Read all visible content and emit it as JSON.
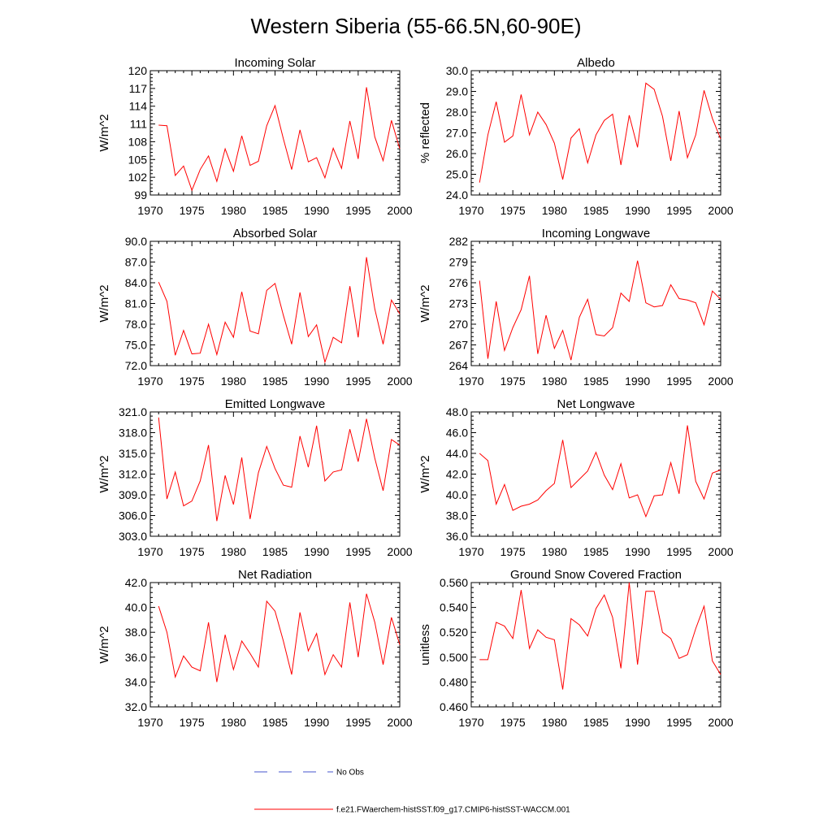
{
  "title": "Western Siberia (55-66.5N,60-90E)",
  "legend": {
    "obs_label": "No Obs",
    "obs_color": "#4455cc",
    "model_label": "f.e21.FWaerchem-histSST.f09_g17.CMIP6-histSST-WACCM.001",
    "model_color": "#ff0000"
  },
  "chart_data": [
    {
      "type": "line",
      "title": "Incoming Solar",
      "ylabel": "W/m^2",
      "xlim": [
        1970,
        2000
      ],
      "ylim": [
        99,
        120
      ],
      "yticks": [
        "99",
        "102",
        "105",
        "108",
        "111",
        "114",
        "117",
        "120"
      ],
      "xticks": [
        "1970",
        "1975",
        "1980",
        "1985",
        "1990",
        "1995",
        "2000"
      ],
      "x_start": 1971,
      "values": [
        110.8,
        110.7,
        102.3,
        103.9,
        99.8,
        103.3,
        105.6,
        101.3,
        106.8,
        103.0,
        109.0,
        104.0,
        104.7,
        110.7,
        114.1,
        108.5,
        103.3,
        110.0,
        104.6,
        105.3,
        101.9,
        106.9,
        103.5,
        111.5,
        105.1,
        117.2,
        108.8,
        104.8,
        111.6,
        106.8
      ]
    },
    {
      "type": "line",
      "title": "Albedo",
      "ylabel": "% reflected",
      "xlim": [
        1970,
        2000
      ],
      "ylim": [
        24.0,
        30.0
      ],
      "yticks": [
        "24.0",
        "25.0",
        "26.0",
        "27.0",
        "28.0",
        "29.0",
        "30.0"
      ],
      "xticks": [
        "1970",
        "1975",
        "1980",
        "1985",
        "1990",
        "1995",
        "2000"
      ],
      "x_start": 1971,
      "values": [
        24.6,
        26.9,
        28.5,
        26.55,
        26.85,
        28.85,
        26.9,
        28.0,
        27.4,
        26.5,
        24.75,
        26.75,
        27.2,
        25.55,
        26.9,
        27.6,
        27.9,
        25.45,
        27.85,
        26.3,
        29.4,
        29.1,
        27.8,
        25.65,
        28.05,
        25.8,
        26.9,
        29.05,
        27.7,
        26.7
      ]
    },
    {
      "type": "line",
      "title": "Absorbed Solar",
      "ylabel": "W/m^2",
      "xlim": [
        1970,
        2000
      ],
      "ylim": [
        72.0,
        90.0
      ],
      "yticks": [
        "72.0",
        "75.0",
        "78.0",
        "81.0",
        "84.0",
        "87.0",
        "90.0"
      ],
      "xticks": [
        "1970",
        "1975",
        "1980",
        "1985",
        "1990",
        "1995",
        "2000"
      ],
      "x_start": 1971,
      "values": [
        84.1,
        81.3,
        73.5,
        77.1,
        73.7,
        73.8,
        78.0,
        73.6,
        78.3,
        76.1,
        82.7,
        77.0,
        76.6,
        82.9,
        83.9,
        79.3,
        75.1,
        82.6,
        76.2,
        77.9,
        72.5,
        76.1,
        75.3,
        83.5,
        76.1,
        87.7,
        80.2,
        75.1,
        81.5,
        79.5
      ]
    },
    {
      "type": "line",
      "title": "Incoming Longwave",
      "ylabel": "W/m^2",
      "xlim": [
        1970,
        2000
      ],
      "ylim": [
        264,
        282
      ],
      "yticks": [
        "264",
        "267",
        "270",
        "273",
        "276",
        "279",
        "282"
      ],
      "xticks": [
        "1970",
        "1975",
        "1980",
        "1985",
        "1990",
        "1995",
        "2000"
      ],
      "x_start": 1971,
      "values": [
        276.3,
        265.0,
        273.3,
        266.2,
        269.5,
        272.1,
        277.0,
        265.7,
        271.3,
        266.5,
        269.1,
        264.8,
        271.0,
        273.6,
        268.5,
        268.3,
        269.5,
        274.5,
        273.3,
        279.2,
        273.1,
        272.5,
        272.7,
        275.7,
        273.7,
        273.5,
        273.1,
        269.9,
        274.8,
        273.6
      ]
    },
    {
      "type": "line",
      "title": "Emitted Longwave",
      "ylabel": "W/m^2",
      "xlim": [
        1970,
        2000
      ],
      "ylim": [
        303.0,
        321.0
      ],
      "yticks": [
        "303.0",
        "306.0",
        "309.0",
        "312.0",
        "315.0",
        "318.0",
        "321.0"
      ],
      "xticks": [
        "1970",
        "1975",
        "1980",
        "1985",
        "1990",
        "1995",
        "2000"
      ],
      "x_start": 1971,
      "values": [
        320.2,
        308.4,
        312.3,
        307.4,
        308.1,
        311.0,
        316.2,
        305.2,
        311.8,
        307.6,
        314.4,
        305.5,
        312.2,
        316.0,
        312.8,
        310.4,
        310.1,
        317.5,
        313.0,
        319.0,
        311.0,
        312.3,
        312.6,
        318.5,
        313.8,
        320.0,
        314.3,
        309.6,
        317.0,
        316.2
      ]
    },
    {
      "type": "line",
      "title": "Net Longwave",
      "ylabel": "W/m^2",
      "xlim": [
        1970,
        2000
      ],
      "ylim": [
        36.0,
        48.0
      ],
      "yticks": [
        "36.0",
        "38.0",
        "40.0",
        "42.0",
        "44.0",
        "46.0",
        "48.0"
      ],
      "xticks": [
        "1970",
        "1975",
        "1980",
        "1985",
        "1990",
        "1995",
        "2000"
      ],
      "x_start": 1971,
      "values": [
        44.0,
        43.3,
        39.1,
        41.0,
        38.5,
        38.9,
        39.1,
        39.5,
        40.4,
        41.1,
        45.3,
        40.7,
        41.5,
        42.3,
        44.1,
        41.9,
        40.5,
        43.0,
        39.7,
        40.0,
        37.9,
        39.9,
        40.0,
        43.1,
        40.1,
        46.7,
        41.3,
        39.6,
        42.1,
        42.4
      ]
    },
    {
      "type": "line",
      "title": "Net Radiation",
      "ylabel": "W/m^2",
      "xlim": [
        1970,
        2000
      ],
      "ylim": [
        32.0,
        42.0
      ],
      "yticks": [
        "32.0",
        "34.0",
        "36.0",
        "38.0",
        "40.0",
        "42.0"
      ],
      "xticks": [
        "1970",
        "1975",
        "1980",
        "1985",
        "1990",
        "1995",
        "2000"
      ],
      "x_start": 1971,
      "values": [
        40.1,
        38.0,
        34.4,
        36.1,
        35.2,
        34.9,
        38.8,
        34.0,
        37.8,
        35.0,
        37.3,
        36.3,
        35.2,
        40.5,
        39.7,
        37.3,
        34.6,
        39.6,
        36.5,
        37.9,
        34.6,
        36.2,
        35.2,
        40.4,
        36.0,
        41.1,
        38.8,
        35.4,
        39.2,
        37.0
      ]
    },
    {
      "type": "line",
      "title": "Ground Snow Covered Fraction",
      "ylabel": "unitless",
      "xlim": [
        1970,
        2000
      ],
      "ylim": [
        0.46,
        0.56
      ],
      "yticks": [
        "0.460",
        "0.480",
        "0.500",
        "0.520",
        "0.540",
        "0.560"
      ],
      "xticks": [
        "1970",
        "1975",
        "1980",
        "1985",
        "1990",
        "1995",
        "2000"
      ],
      "x_start": 1971,
      "values": [
        0.498,
        0.498,
        0.528,
        0.525,
        0.515,
        0.554,
        0.507,
        0.522,
        0.516,
        0.514,
        0.474,
        0.531,
        0.526,
        0.517,
        0.539,
        0.55,
        0.532,
        0.491,
        0.56,
        0.494,
        0.553,
        0.553,
        0.52,
        0.515,
        0.499,
        0.502,
        0.523,
        0.541,
        0.497,
        0.486
      ]
    }
  ]
}
